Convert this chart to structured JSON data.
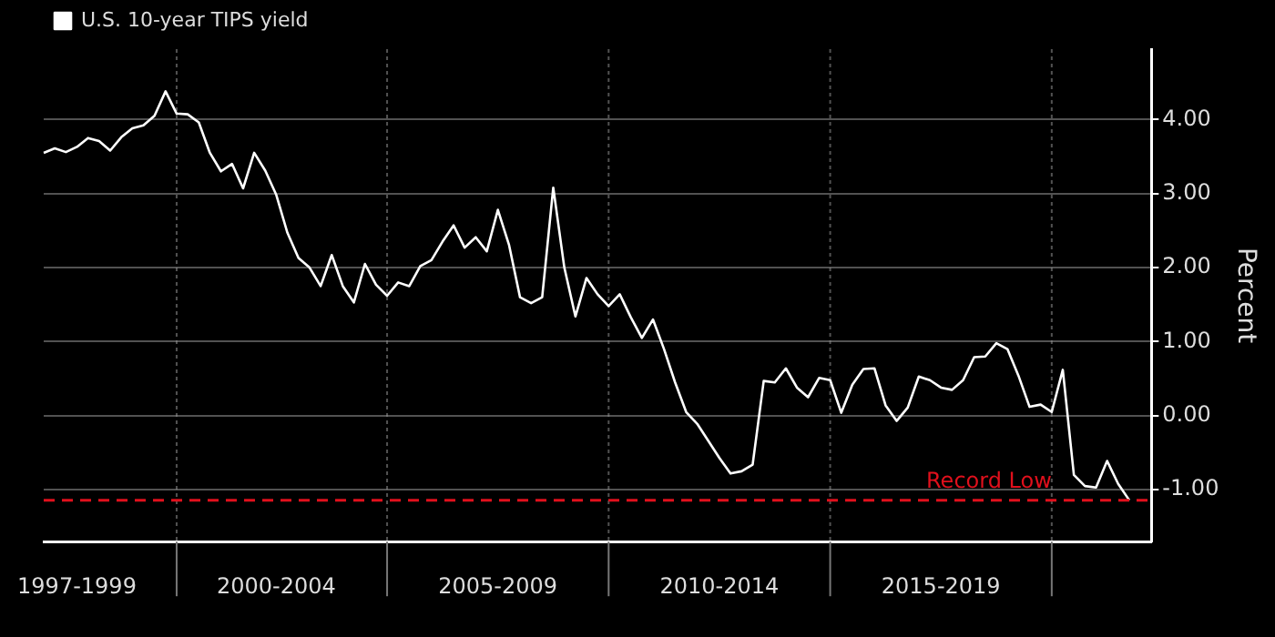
{
  "chart_data": {
    "type": "line",
    "legend": "top left",
    "ylabel": "Percent",
    "grid": true,
    "marker": "none",
    "line_style": "solid",
    "ylim": [
      -1.7,
      4.95
    ],
    "yticks": [
      {
        "value": 4,
        "label": "4.00"
      },
      {
        "value": 3,
        "label": "3.00"
      },
      {
        "value": 2,
        "label": "2.00"
      },
      {
        "value": 1,
        "label": "1.00"
      },
      {
        "value": 0,
        "label": "0.00"
      },
      {
        "value": -1,
        "label": "-1.00"
      }
    ],
    "ref_lines": [
      {
        "axis": "y",
        "value": -1.14,
        "label": "Record Low",
        "color": "#e0101c",
        "line_style": "dashed"
      }
    ],
    "categories": [
      null,
      null,
      null,
      "1997-1999",
      null,
      null,
      null,
      null,
      null,
      null,
      null,
      null,
      null,
      null,
      null,
      null,
      null,
      null,
      null,
      null,
      null,
      "2000-2004",
      null,
      null,
      null,
      null,
      null,
      null,
      null,
      null,
      null,
      null,
      null,
      null,
      null,
      null,
      null,
      null,
      null,
      null,
      null,
      "2005-2009",
      null,
      null,
      null,
      null,
      null,
      null,
      null,
      null,
      null,
      null,
      null,
      null,
      null,
      null,
      null,
      null,
      null,
      null,
      null,
      "2010-2014",
      null,
      null,
      null,
      null,
      null,
      null,
      null,
      null,
      null,
      null,
      null,
      null,
      null,
      null,
      null,
      null,
      null,
      null,
      null,
      "2015-2019",
      null,
      null,
      null,
      null,
      null,
      null,
      null,
      null,
      null,
      null,
      null,
      null,
      null,
      null,
      null,
      null,
      null,
      null,
      null
    ],
    "series": [
      {
        "name": "U.S. 10-year TIPS yield",
        "color": "#ffffff",
        "values": [
          3.55,
          3.61,
          3.56,
          3.63,
          3.75,
          3.71,
          3.58,
          3.76,
          3.88,
          3.92,
          4.05,
          4.38,
          4.08,
          4.07,
          3.96,
          3.55,
          3.3,
          3.4,
          3.07,
          3.55,
          3.31,
          2.98,
          2.47,
          2.13,
          2.0,
          1.75,
          2.17,
          1.75,
          1.53,
          2.05,
          1.77,
          1.62,
          1.8,
          1.75,
          2.02,
          2.1,
          2.35,
          2.57,
          2.27,
          2.41,
          2.22,
          2.78,
          2.31,
          1.6,
          1.52,
          1.6,
          3.08,
          2.0,
          1.34,
          1.86,
          1.64,
          1.48,
          1.64,
          1.33,
          1.05,
          1.3,
          0.9,
          0.45,
          0.05,
          -0.11,
          -0.34,
          -0.57,
          -0.78,
          -0.75,
          -0.66,
          0.47,
          0.45,
          0.64,
          0.38,
          0.25,
          0.51,
          0.48,
          0.04,
          0.42,
          0.63,
          0.64,
          0.14,
          -0.07,
          0.11,
          0.53,
          0.48,
          0.38,
          0.35,
          0.48,
          0.79,
          0.8,
          0.98,
          0.9,
          0.54,
          0.12,
          0.15,
          0.05,
          0.62,
          -0.8,
          -0.95,
          -0.97,
          -0.61,
          -0.92,
          -1.14,
          null,
          null
        ]
      }
    ]
  }
}
